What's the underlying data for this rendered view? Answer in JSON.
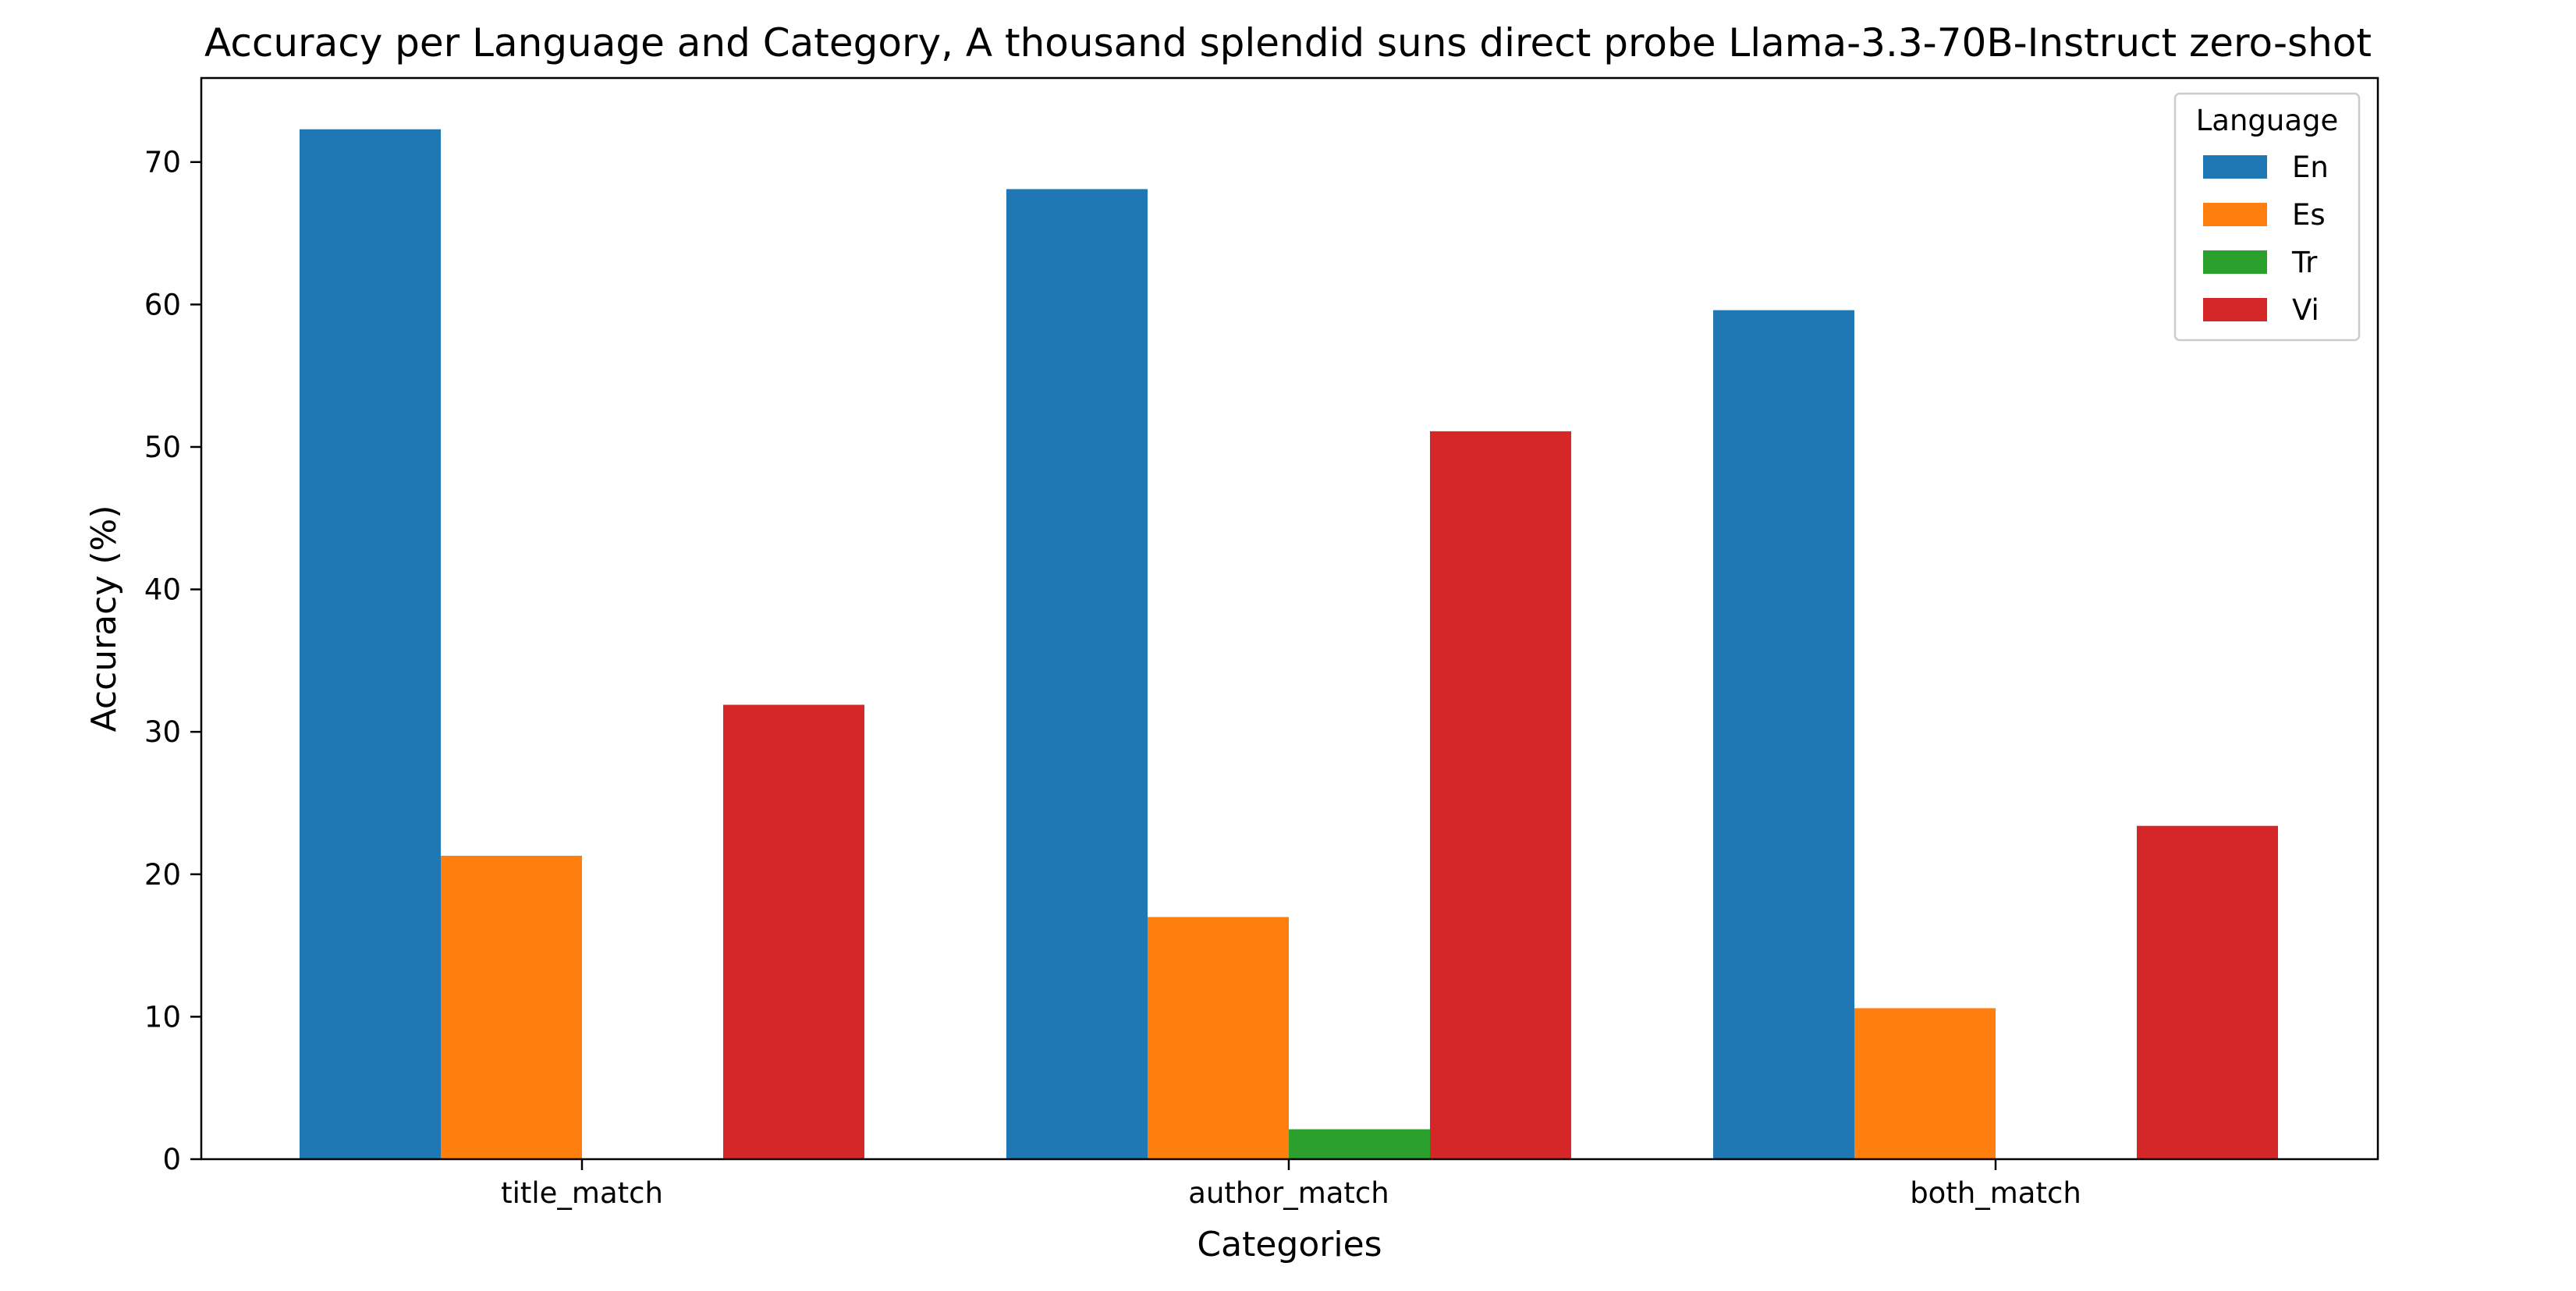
{
  "chart_data": {
    "type": "bar",
    "title": "Accuracy per Language and Category, A thousand splendid suns direct probe Llama-3.3-70B-Instruct zero-shot",
    "xlabel": "Categories",
    "ylabel": "Accuracy (%)",
    "categories": [
      "title_match",
      "author_match",
      "both_match"
    ],
    "series": [
      {
        "name": "En",
        "values": [
          72.3,
          68.1,
          59.6
        ],
        "color": "#1f77b4"
      },
      {
        "name": "Es",
        "values": [
          21.3,
          17.0,
          10.6
        ],
        "color": "#ff7f0e"
      },
      {
        "name": "Tr",
        "values": [
          0,
          2.1,
          0
        ],
        "color": "#2ca02c"
      },
      {
        "name": "Vi",
        "values": [
          31.9,
          51.1,
          23.4
        ],
        "color": "#d62728"
      }
    ],
    "ylim": [
      0,
      75.9
    ],
    "yticks": [
      0,
      10,
      20,
      30,
      40,
      50,
      60,
      70
    ],
    "grid": false,
    "legend": {
      "title": "Language",
      "placement": "top-right"
    }
  }
}
